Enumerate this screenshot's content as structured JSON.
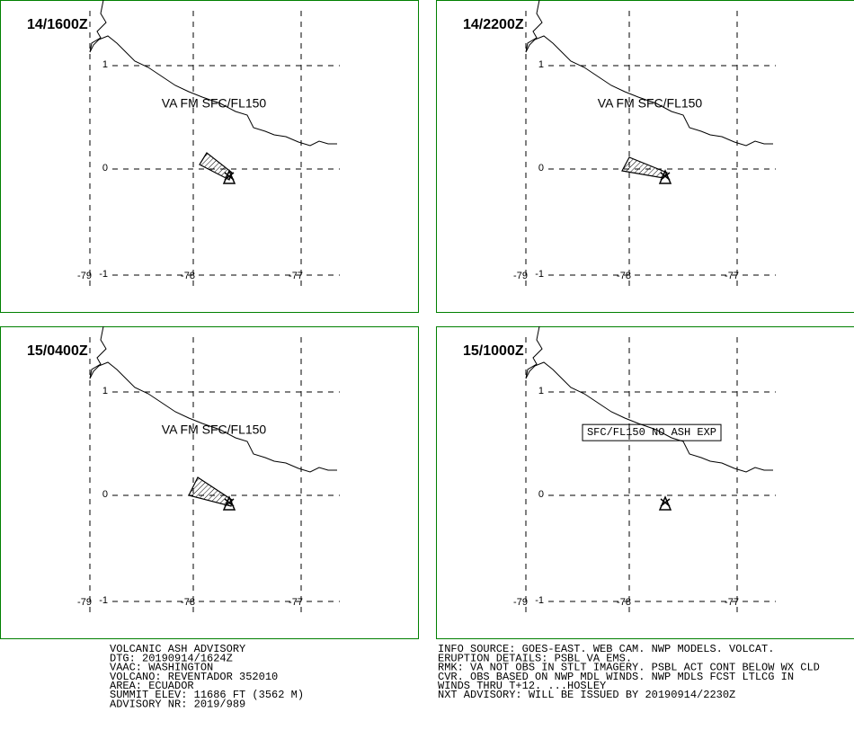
{
  "panels": [
    {
      "time": "14/1600Z",
      "annotation": "VA FM SFC/FL150",
      "boxed": false
    },
    {
      "time": "14/2200Z",
      "annotation": "VA FM SFC/FL150",
      "boxed": false
    },
    {
      "time": "15/0400Z",
      "annotation": "VA FM SFC/FL150",
      "boxed": false
    },
    {
      "time": "15/1000Z",
      "annotation": "SFC/FL150 NO ASH EXP",
      "boxed": true
    }
  ],
  "lat_ticks": [
    1,
    0,
    -1
  ],
  "lon_ticks": [
    -79,
    -78,
    -77
  ],
  "info_left": [
    "VOLCANIC ASH ADVISORY",
    "DTG: 20190914/1624Z",
    "VAAC: WASHINGTON",
    "VOLCANO: REVENTADOR 352010",
    "AREA: ECUADOR",
    "SUMMIT ELEV: 11686 FT (3562 M)",
    "ADVISORY NR: 2019/989"
  ],
  "info_right": [
    "INFO SOURCE: GOES-EAST. WEB CAM. NWP MODELS. VOLCAT.",
    "ERUPTION DETAILS: PSBL VA EMS.",
    "RMK: VA NOT OBS IN STLT IMAGERY. PSBL ACT CONT BELOW WX CLD",
    "CVR. OBS BASED ON NWP MDL WINDS. NWP MDLS FCST LTLCG IN",
    "WINDS THRU T+12. ...HOSLEY",
    "NXT ADVISORY: WILL BE ISSUED BY 20190914/2230Z"
  ]
}
